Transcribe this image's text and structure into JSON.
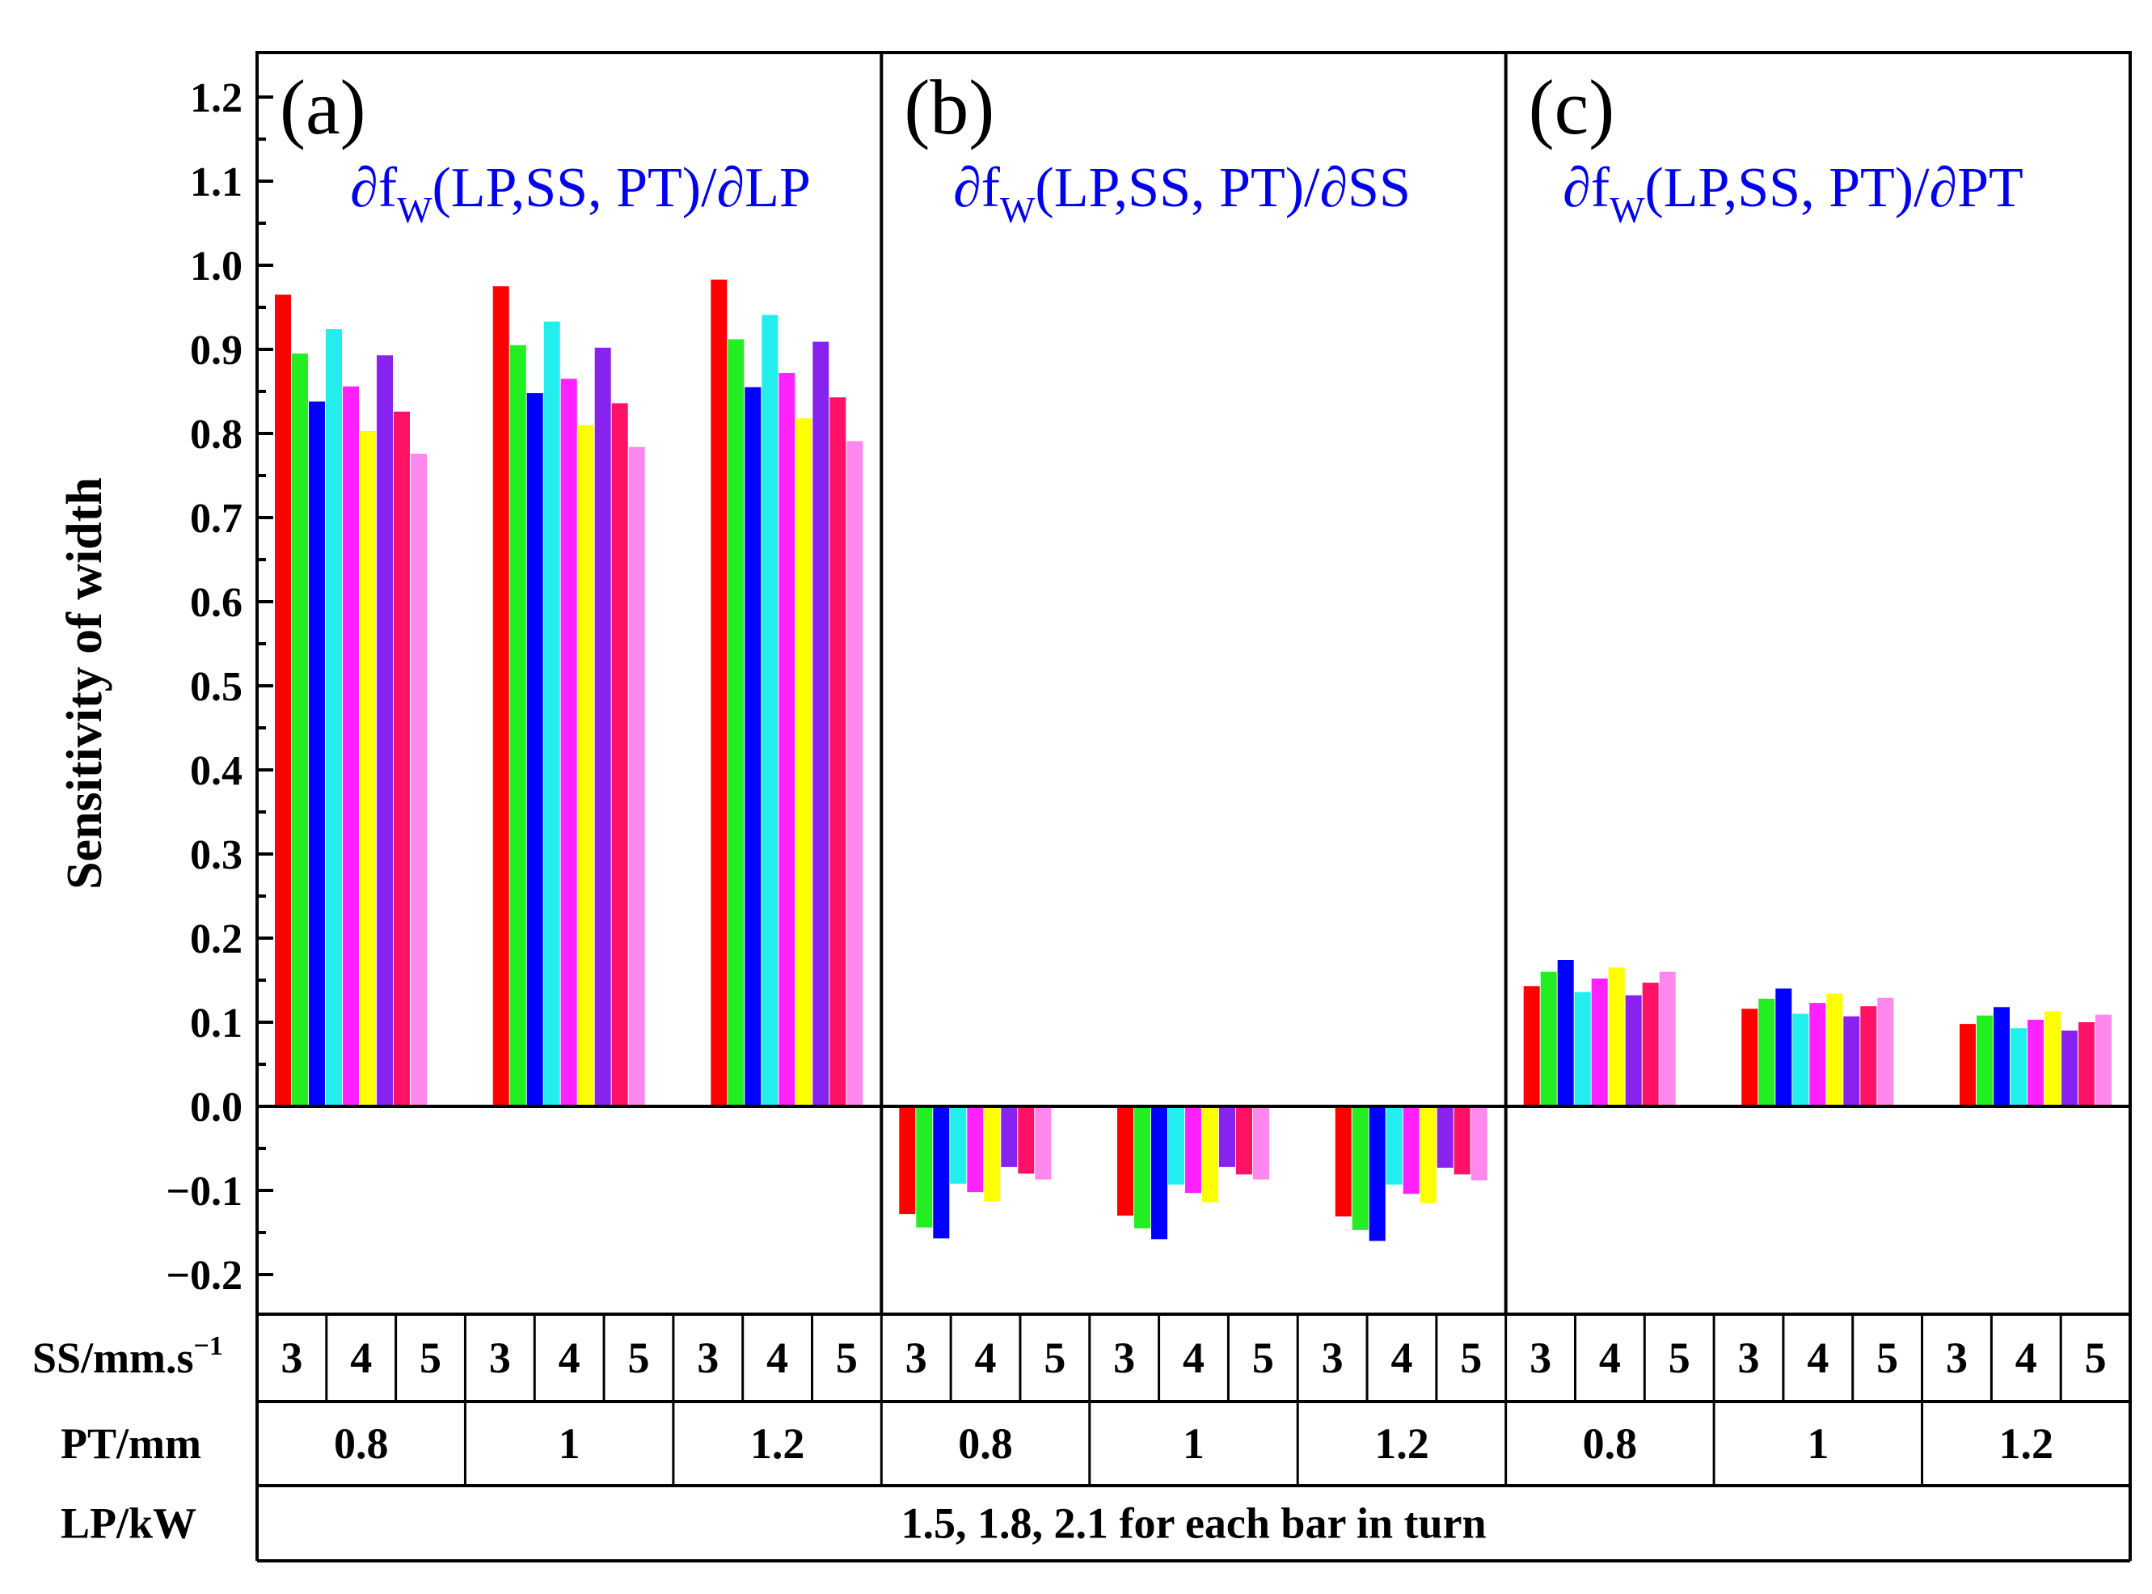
{
  "chart_data": {
    "type": "bar",
    "ylabel": "Sensitivity of width",
    "ylim": [
      -0.25,
      1.25
    ],
    "yticks": [
      "1.2",
      "1.1",
      "1.0",
      "0.9",
      "0.8",
      "0.7",
      "0.6",
      "0.5",
      "0.4",
      "0.3",
      "0.2",
      "0.1",
      "0.0",
      "−0.1",
      "−0.2"
    ],
    "ytick_values": [
      1.2,
      1.1,
      1.0,
      0.9,
      0.8,
      0.7,
      0.6,
      0.5,
      0.4,
      0.3,
      0.2,
      0.1,
      0.0,
      -0.1,
      -0.2
    ],
    "bar_colors": [
      "#ff0000",
      "#22ee22",
      "#0000ff",
      "#22eeee",
      "#ff22ff",
      "#ffff00",
      "#8822ee",
      "#ff1166",
      "#ff88ee"
    ],
    "panels": [
      {
        "label": "(a)",
        "title": {
          "pre": "∂f",
          "sub": "W",
          "post": "(LP,SS, PT)/∂LP"
        },
        "groups": [
          [
            0.965,
            0.895,
            0.838,
            0.924,
            0.856,
            0.803,
            0.893,
            0.826,
            0.776
          ],
          [
            0.975,
            0.905,
            0.848,
            0.933,
            0.865,
            0.81,
            0.902,
            0.836,
            0.784
          ],
          [
            0.983,
            0.912,
            0.855,
            0.941,
            0.872,
            0.818,
            0.909,
            0.843,
            0.791
          ]
        ]
      },
      {
        "label": "(b)",
        "title": {
          "pre": "∂f",
          "sub": "W",
          "post": "(LP,SS, PT)/∂SS"
        },
        "groups": [
          [
            -0.128,
            -0.144,
            -0.157,
            -0.092,
            -0.102,
            -0.113,
            -0.072,
            -0.08,
            -0.087
          ],
          [
            -0.13,
            -0.145,
            -0.158,
            -0.093,
            -0.103,
            -0.114,
            -0.072,
            -0.081,
            -0.087
          ],
          [
            -0.131,
            -0.147,
            -0.16,
            -0.093,
            -0.104,
            -0.115,
            -0.073,
            -0.081,
            -0.088
          ]
        ]
      },
      {
        "label": "(c)",
        "title": {
          "pre": "∂f",
          "sub": "W",
          "post": "(LP,SS, PT)/∂PT"
        },
        "groups": [
          [
            0.143,
            0.16,
            0.174,
            0.136,
            0.152,
            0.165,
            0.132,
            0.147,
            0.16
          ],
          [
            0.116,
            0.128,
            0.14,
            0.11,
            0.123,
            0.134,
            0.107,
            0.119,
            0.129
          ],
          [
            0.098,
            0.108,
            0.118,
            0.093,
            0.103,
            0.113,
            0.09,
            0.1,
            0.109
          ]
        ]
      }
    ],
    "table": {
      "ss_label": "SS/mm.s",
      "ss_sup": "−1",
      "ss_values": [
        "3",
        "4",
        "5",
        "3",
        "4",
        "5",
        "3",
        "4",
        "5",
        "3",
        "4",
        "5",
        "3",
        "4",
        "5",
        "3",
        "4",
        "5",
        "3",
        "4",
        "5",
        "3",
        "4",
        "5",
        "3",
        "4",
        "5"
      ],
      "pt_label": "PT/mm",
      "pt_values": [
        "0.8",
        "1",
        "1.2",
        "0.8",
        "1",
        "1.2",
        "0.8",
        "1",
        "1.2"
      ],
      "lp_label": "LP/kW",
      "lp_text": "1.5, 1.8, 2.1 for each bar in turn"
    }
  }
}
